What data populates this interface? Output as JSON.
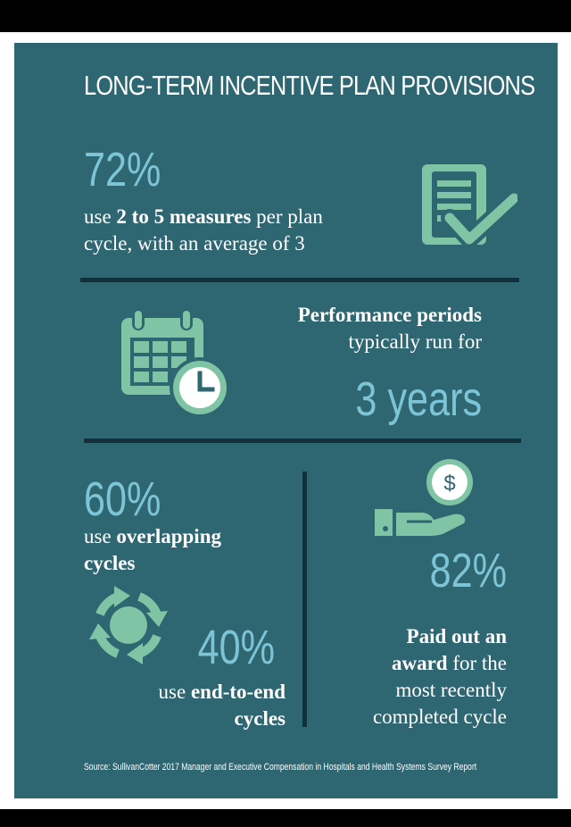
{
  "title": "LONG-TERM INCENTIVE PLAN PROVISIONS",
  "colors": {
    "background": "#2e6672",
    "accent_number": "#7cc4d6",
    "icon_green": "#7ec4a5",
    "divider": "#13303a"
  },
  "measures": {
    "value": "72%",
    "line1_a": "use ",
    "line1_bold": "2 to 5 measures",
    "line1_b": " per plan",
    "line2": "cycle, with an average of 3",
    "icon": "checklist-icon"
  },
  "performance": {
    "line1": "Performance periods",
    "line2": "typically run for",
    "value": "3 years",
    "icon": "calendar-clock-icon"
  },
  "overlapping": {
    "value": "60%",
    "line1_a": "use ",
    "line1_bold": "overlapping",
    "line2_bold": "cycles",
    "icon": "cycle-arrows-icon"
  },
  "end_to_end": {
    "value": "40%",
    "line1_a": "use ",
    "line1_bold": "end-to-end",
    "line2_bold": "cycles"
  },
  "award": {
    "value": "82%",
    "line1_bold": "Paid out an",
    "line2_bold": "award",
    "line2_b": " for the",
    "line3": "most recently",
    "line4": "completed cycle",
    "icon": "hand-dollar-icon",
    "dollar_symbol": "$"
  },
  "source": "Source: SullivanCotter 2017 Manager and Executive Compensation in Hospitals and Health Systems Survey Report"
}
